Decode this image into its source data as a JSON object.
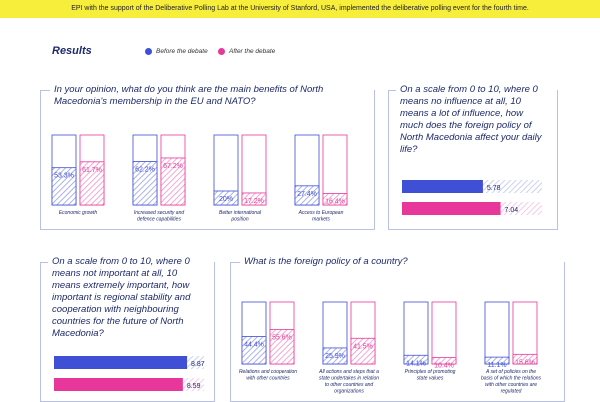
{
  "banner": "EPI with the support of the Deliberative Polling Lab at the University of Stanford, USA, implemented the deliberative polling event for the fourth time.",
  "results_title": "Results",
  "legend": {
    "before": "Before the debate",
    "after": "After the debate"
  },
  "colors": {
    "before": "#3f4fd6",
    "after": "#e8379a",
    "border": "#b9c2e6",
    "banner": "#f7ee3c"
  },
  "chart_data": [
    {
      "type": "bar",
      "title": "In your opinion, what do you think are the main benefits of North Macedonia's membership in the EU and NATO?",
      "categories": [
        "Economic growth",
        "Increased security and defence capabilities",
        "Better international position",
        "Access to European markets"
      ],
      "series": [
        {
          "name": "Before the debate",
          "values": [
            53.3,
            62.2,
            20,
            27.4
          ],
          "labels": [
            "53.3%",
            "62.2%",
            "20%",
            "27.4%"
          ]
        },
        {
          "name": "After the debate",
          "values": [
            61.7,
            67.2,
            17.2,
            16.4
          ],
          "labels": [
            "61.7%",
            "67.2%",
            "17.2%",
            "16.4%"
          ]
        }
      ],
      "ylim": [
        0,
        100
      ]
    },
    {
      "type": "bar",
      "title": "On a scale from 0 to 10, where 0 means no influence at all, 10 means a lot of influence, how much does the foreign policy of North Macedonia affect your daily life?",
      "orientation": "horizontal",
      "series": [
        {
          "name": "Before the debate",
          "values": [
            5.78
          ],
          "labels": [
            "5.78"
          ]
        },
        {
          "name": "After the debate",
          "values": [
            7.04
          ],
          "labels": [
            "7.04"
          ]
        }
      ],
      "xlim": [
        0,
        10
      ]
    },
    {
      "type": "bar",
      "title": "On a scale from 0 to 10, where 0 means not important at all, 10 means extremely important, how important is regional stability and cooperation with neighbouring countries for the future of North Macedonia?",
      "orientation": "horizontal",
      "series": [
        {
          "name": "Before the debate",
          "values": [
            8.87
          ],
          "labels": [
            "8.87"
          ]
        },
        {
          "name": "After the debate",
          "values": [
            8.59
          ],
          "labels": [
            "8.59"
          ]
        }
      ],
      "xlim": [
        0,
        10
      ]
    },
    {
      "type": "bar",
      "title": "What is the foreign policy of a country?",
      "categories": [
        "Relations and cooperation with other countries",
        "All actions and steps that a state undertakes in relation to other countries and organizations",
        "Principles of promoting state values",
        "A set of policies on the basis of which the relations with other countries are regulated"
      ],
      "series": [
        {
          "name": "Before the debate",
          "values": [
            44.4,
            25.9,
            14.1,
            11.1
          ],
          "labels": [
            "44.4%",
            "25.9%",
            "14.1%",
            "11.1%"
          ]
        },
        {
          "name": "After the debate",
          "values": [
            55.6,
            41.5,
            10.4,
            15.6
          ],
          "labels": [
            "55.6%",
            "41.5%",
            "10.4%",
            "15.6%"
          ]
        }
      ],
      "ylim": [
        0,
        100
      ]
    }
  ]
}
